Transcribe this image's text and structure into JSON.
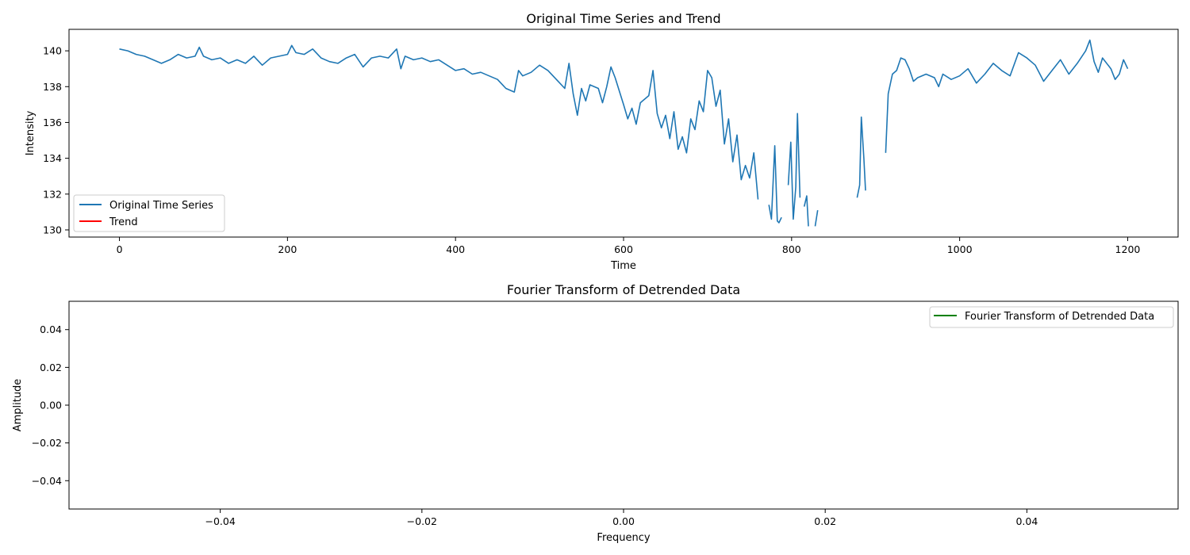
{
  "chart_data": [
    {
      "type": "line",
      "title": "Original Time Series and Trend",
      "xlabel": "Time",
      "ylabel": "Intensity",
      "xlim": [
        -60,
        1260
      ],
      "ylim": [
        129.6,
        141.2
      ],
      "xticks": [
        0,
        200,
        400,
        600,
        800,
        1000,
        1200
      ],
      "yticks": [
        130,
        132,
        134,
        136,
        138,
        140
      ],
      "grid": false,
      "legend_position": "lower-left",
      "series": [
        {
          "name": "Original Time Series",
          "color": "#1f77b4",
          "segments": [
            [
              [
                0,
                140.1
              ],
              [
                10,
                140.0
              ],
              [
                20,
                139.8
              ],
              [
                30,
                139.7
              ],
              [
                40,
                139.5
              ],
              [
                50,
                139.3
              ],
              [
                60,
                139.5
              ],
              [
                70,
                139.8
              ],
              [
                80,
                139.6
              ],
              [
                90,
                139.7
              ],
              [
                95,
                140.2
              ],
              [
                100,
                139.7
              ],
              [
                110,
                139.5
              ],
              [
                120,
                139.6
              ],
              [
                130,
                139.3
              ],
              [
                140,
                139.5
              ],
              [
                150,
                139.3
              ],
              [
                160,
                139.7
              ],
              [
                170,
                139.2
              ],
              [
                180,
                139.6
              ],
              [
                190,
                139.7
              ],
              [
                200,
                139.8
              ],
              [
                205,
                140.3
              ],
              [
                210,
                139.9
              ],
              [
                220,
                139.8
              ],
              [
                230,
                140.1
              ],
              [
                240,
                139.6
              ],
              [
                250,
                139.4
              ],
              [
                260,
                139.3
              ],
              [
                270,
                139.6
              ],
              [
                280,
                139.8
              ],
              [
                290,
                139.1
              ],
              [
                300,
                139.6
              ],
              [
                310,
                139.7
              ],
              [
                320,
                139.6
              ],
              [
                330,
                140.1
              ],
              [
                335,
                139.0
              ],
              [
                340,
                139.7
              ],
              [
                350,
                139.5
              ],
              [
                360,
                139.6
              ],
              [
                370,
                139.4
              ],
              [
                380,
                139.5
              ],
              [
                390,
                139.2
              ],
              [
                400,
                138.9
              ],
              [
                410,
                139.0
              ],
              [
                420,
                138.7
              ],
              [
                430,
                138.8
              ],
              [
                440,
                138.6
              ],
              [
                450,
                138.4
              ],
              [
                460,
                137.9
              ],
              [
                470,
                137.7
              ],
              [
                475,
                138.9
              ],
              [
                480,
                138.6
              ],
              [
                490,
                138.8
              ],
              [
                500,
                139.2
              ],
              [
                510,
                138.9
              ],
              [
                520,
                138.4
              ],
              [
                530,
                137.9
              ],
              [
                535,
                139.3
              ],
              [
                540,
                137.6
              ],
              [
                545,
                136.4
              ],
              [
                550,
                137.9
              ],
              [
                555,
                137.2
              ],
              [
                560,
                138.1
              ],
              [
                570,
                137.9
              ],
              [
                575,
                137.1
              ],
              [
                580,
                138.0
              ],
              [
                585,
                139.1
              ],
              [
                590,
                138.5
              ],
              [
                600,
                137.0
              ],
              [
                605,
                136.2
              ],
              [
                610,
                136.8
              ],
              [
                615,
                135.9
              ],
              [
                620,
                137.1
              ],
              [
                630,
                137.5
              ],
              [
                635,
                138.9
              ],
              [
                640,
                136.5
              ],
              [
                645,
                135.7
              ],
              [
                650,
                136.4
              ],
              [
                655,
                135.1
              ],
              [
                660,
                136.6
              ],
              [
                665,
                134.5
              ],
              [
                670,
                135.2
              ],
              [
                675,
                134.3
              ],
              [
                680,
                136.2
              ],
              [
                685,
                135.6
              ],
              [
                690,
                137.2
              ],
              [
                695,
                136.6
              ],
              [
                700,
                138.9
              ],
              [
                705,
                138.5
              ],
              [
                710,
                136.9
              ],
              [
                715,
                137.8
              ],
              [
                720,
                134.8
              ],
              [
                725,
                136.2
              ],
              [
                730,
                133.8
              ],
              [
                735,
                135.3
              ],
              [
                740,
                132.8
              ],
              [
                745,
                133.6
              ],
              [
                750,
                132.9
              ],
              [
                755,
                134.3
              ],
              [
                760,
                131.7
              ]
            ],
            [
              [
                773,
                131.4
              ],
              [
                776,
                130.6
              ],
              [
                780,
                134.7
              ],
              [
                783,
                130.5
              ],
              [
                785,
                130.4
              ],
              [
                788,
                130.7
              ]
            ],
            [
              [
                796,
                132.5
              ],
              [
                799,
                134.9
              ],
              [
                802,
                130.6
              ],
              [
                805,
                132.4
              ],
              [
                807,
                136.5
              ],
              [
                810,
                131.8
              ]
            ],
            [
              [
                815,
                131.3
              ],
              [
                818,
                131.9
              ],
              [
                820,
                130.2
              ]
            ],
            [
              [
                828,
                130.2
              ],
              [
                831,
                131.1
              ]
            ],
            [
              [
                878,
                131.8
              ],
              [
                881,
                132.5
              ],
              [
                883,
                136.3
              ],
              [
                886,
                134.0
              ],
              [
                888,
                132.2
              ]
            ],
            [
              [
                912,
                134.3
              ],
              [
                915,
                137.6
              ],
              [
                920,
                138.7
              ],
              [
                925,
                138.9
              ],
              [
                930,
                139.6
              ],
              [
                935,
                139.5
              ],
              [
                940,
                139.0
              ],
              [
                945,
                138.3
              ],
              [
                950,
                138.5
              ],
              [
                960,
                138.7
              ],
              [
                970,
                138.5
              ],
              [
                975,
                138.0
              ],
              [
                980,
                138.7
              ],
              [
                990,
                138.4
              ],
              [
                1000,
                138.6
              ],
              [
                1010,
                139.0
              ],
              [
                1020,
                138.2
              ],
              [
                1030,
                138.7
              ],
              [
                1040,
                139.3
              ],
              [
                1050,
                138.9
              ],
              [
                1060,
                138.6
              ],
              [
                1070,
                139.9
              ],
              [
                1080,
                139.6
              ],
              [
                1090,
                139.2
              ],
              [
                1100,
                138.3
              ],
              [
                1110,
                138.9
              ],
              [
                1120,
                139.5
              ],
              [
                1130,
                138.7
              ],
              [
                1140,
                139.3
              ],
              [
                1150,
                140.0
              ],
              [
                1155,
                140.6
              ],
              [
                1160,
                139.4
              ],
              [
                1165,
                138.8
              ],
              [
                1170,
                139.6
              ],
              [
                1180,
                139.0
              ],
              [
                1185,
                138.4
              ],
              [
                1190,
                138.7
              ],
              [
                1195,
                139.5
              ],
              [
                1200,
                139.0
              ]
            ]
          ]
        },
        {
          "name": "Trend",
          "color": "#ff0000",
          "segments": []
        }
      ]
    },
    {
      "type": "line",
      "title": "Fourier Transform of Detrended Data",
      "xlabel": "Frequency",
      "ylabel": "Amplitude",
      "xlim": [
        -0.055,
        0.055
      ],
      "ylim": [
        -0.055,
        0.055
      ],
      "xticks": [
        "−0.04",
        "−0.02",
        "0.00",
        "0.02",
        "0.04"
      ],
      "yticks": [
        "0.04",
        "0.02",
        "0.00",
        "−0.02",
        "−0.04"
      ],
      "grid": false,
      "legend_position": "top-right",
      "series": [
        {
          "name": "Fourier Transform of Detrended Data",
          "color": "#008000",
          "segments": []
        }
      ]
    }
  ]
}
